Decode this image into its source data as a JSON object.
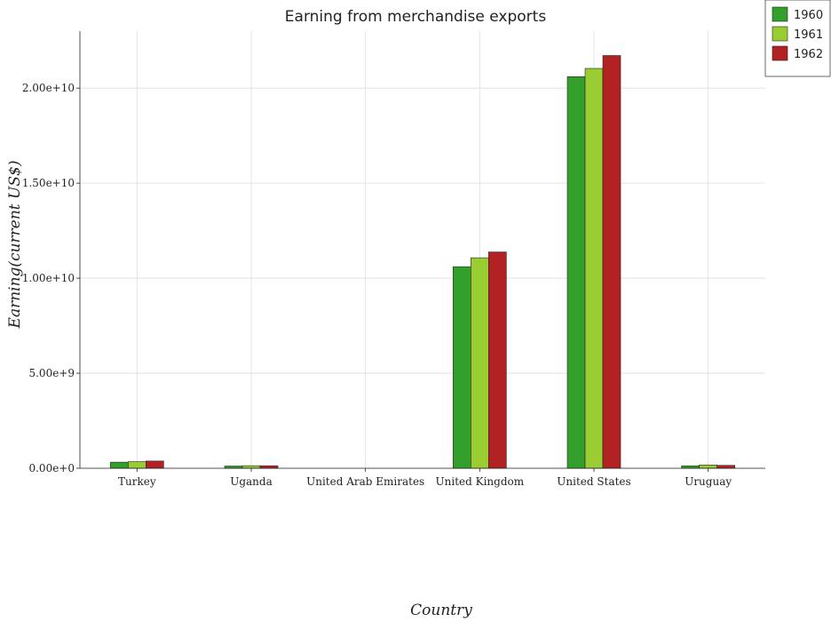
{
  "chart_data": {
    "type": "bar",
    "title": "Earning from merchandise exports",
    "xlabel": "Country",
    "ylabel": "Earning(current US$)",
    "categories": [
      "Turkey",
      "Uganda",
      "United Arab Emirates",
      "United Kingdom",
      "United States",
      "Uruguay"
    ],
    "series": [
      {
        "name": "1960",
        "color": "#33a02c",
        "values": [
          321000000,
          117000000,
          0,
          10605000000,
          20601000000,
          129000000
        ]
      },
      {
        "name": "1961",
        "color": "#9acd32",
        "values": [
          347000000,
          135000000,
          0,
          11074000000,
          21036000000,
          175000000
        ]
      },
      {
        "name": "1962",
        "color": "#b22222",
        "values": [
          381000000,
          132000000,
          0,
          11379000000,
          21714000000,
          153000000
        ]
      }
    ],
    "ylim": [
      0,
      23000000000
    ],
    "yticks": [
      0,
      5000000000,
      10000000000,
      15000000000,
      20000000000
    ],
    "ytick_labels": [
      "0.00e+0",
      "5.00e+9",
      "1.00e+10",
      "1.50e+10",
      "2.00e+10"
    ],
    "grid": true,
    "legend_position": "top-right"
  }
}
